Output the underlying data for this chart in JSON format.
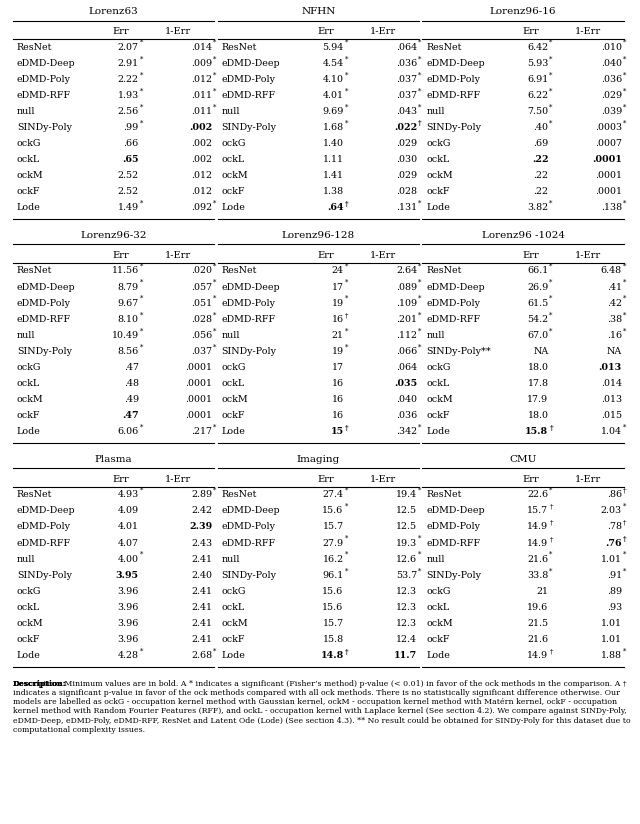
{
  "figure_width": 6.4,
  "figure_height": 8.24,
  "tables": [
    {
      "title": "Lorenz63",
      "rows": [
        [
          "ResNet",
          "2.07",
          "*",
          ".014",
          "*",
          false,
          false
        ],
        [
          "eDMD-Deep",
          "2.91",
          "*",
          ".009",
          "*",
          false,
          false
        ],
        [
          "eDMD-Poly",
          "2.22",
          "*",
          ".012",
          "*",
          false,
          false
        ],
        [
          "eDMD-RFF",
          "1.93",
          "*",
          ".011",
          "*",
          false,
          false
        ],
        [
          "null",
          "2.56",
          "*",
          ".011",
          "*",
          false,
          false
        ],
        [
          "SINDy-Poly",
          ".99",
          "*",
          ".002",
          "",
          false,
          true
        ],
        [
          "ockG",
          ".66",
          "",
          ".002",
          "",
          false,
          false
        ],
        [
          "ockL",
          ".65",
          "",
          ".002",
          "",
          true,
          false
        ],
        [
          "ockM",
          "2.52",
          "",
          ".012",
          "",
          false,
          false
        ],
        [
          "ockF",
          "2.52",
          "",
          ".012",
          "",
          false,
          false
        ],
        [
          "Lode",
          "1.49",
          "*",
          ".092",
          "*",
          false,
          false
        ]
      ]
    },
    {
      "title": "NFHN",
      "rows": [
        [
          "ResNet",
          "5.94",
          "*",
          ".064",
          "*",
          false,
          false
        ],
        [
          "eDMD-Deep",
          "4.54",
          "*",
          ".036",
          "*",
          false,
          false
        ],
        [
          "eDMD-Poly",
          "4.10",
          "*",
          ".037",
          "*",
          false,
          false
        ],
        [
          "eDMD-RFF",
          "4.01",
          "*",
          ".037",
          "*",
          false,
          false
        ],
        [
          "null",
          "9.69",
          "*",
          ".043",
          "*",
          false,
          false
        ],
        [
          "SINDy-Poly",
          "1.68",
          "*",
          ".022",
          "†",
          false,
          true
        ],
        [
          "ockG",
          "1.40",
          "",
          ".029",
          "",
          false,
          false
        ],
        [
          "ockL",
          "1.11",
          "",
          ".030",
          "",
          false,
          false
        ],
        [
          "ockM",
          "1.41",
          "",
          ".029",
          "",
          false,
          false
        ],
        [
          "ockF",
          "1.38",
          "",
          ".028",
          "",
          false,
          false
        ],
        [
          "Lode",
          ".64",
          "†",
          ".131",
          "*",
          true,
          false
        ]
      ]
    },
    {
      "title": "Lorenz96-16",
      "rows": [
        [
          "ResNet",
          "6.42",
          "*",
          ".010",
          "*",
          false,
          false
        ],
        [
          "eDMD-Deep",
          "5.93",
          "*",
          ".040",
          "*",
          false,
          false
        ],
        [
          "eDMD-Poly",
          "6.91",
          "*",
          ".036",
          "*",
          false,
          false
        ],
        [
          "eDMD-RFF",
          "6.22",
          "*",
          ".029",
          "*",
          false,
          false
        ],
        [
          "null",
          "7.50",
          "*",
          ".039",
          "*",
          false,
          false
        ],
        [
          "SINDy-Poly",
          ".40",
          "*",
          ".0003",
          "*",
          false,
          false
        ],
        [
          "ockG",
          ".69",
          "",
          ".0007",
          "",
          false,
          false
        ],
        [
          "ockL",
          ".22",
          "",
          ".0001",
          "",
          true,
          true
        ],
        [
          "ockM",
          ".22",
          "",
          ".0001",
          "",
          false,
          false
        ],
        [
          "ockF",
          ".22",
          "",
          ".0001",
          "",
          false,
          false
        ],
        [
          "Lode",
          "3.82",
          "*",
          ".138",
          "*",
          false,
          false
        ]
      ]
    },
    {
      "title": "Lorenz96-32",
      "rows": [
        [
          "ResNet",
          "11.56",
          "*",
          ".020",
          "*",
          false,
          false
        ],
        [
          "eDMD-Deep",
          "8.79",
          "*",
          ".057",
          "*",
          false,
          false
        ],
        [
          "eDMD-Poly",
          "9.67",
          "*",
          ".051",
          "*",
          false,
          false
        ],
        [
          "eDMD-RFF",
          "8.10",
          "*",
          ".028",
          "*",
          false,
          false
        ],
        [
          "null",
          "10.49",
          "*",
          ".056",
          "*",
          false,
          false
        ],
        [
          "SINDy-Poly",
          "8.56",
          "*",
          ".037",
          "*",
          false,
          false
        ],
        [
          "ockG",
          ".47",
          "",
          ".0001",
          "",
          false,
          false
        ],
        [
          "ockL",
          ".48",
          "",
          ".0001",
          "",
          false,
          false
        ],
        [
          "ockM",
          ".49",
          "",
          ".0001",
          "",
          false,
          false
        ],
        [
          "ockF",
          ".47",
          "",
          ".0001",
          "",
          true,
          false
        ],
        [
          "Lode",
          "6.06",
          "*",
          ".217",
          "*",
          false,
          false
        ]
      ]
    },
    {
      "title": "Lorenz96-128",
      "rows": [
        [
          "ResNet",
          "24",
          "*",
          "2.64",
          "*",
          false,
          false
        ],
        [
          "eDMD-Deep",
          "17",
          "*",
          ".089",
          "*",
          false,
          false
        ],
        [
          "eDMD-Poly",
          "19",
          "*",
          ".109",
          "*",
          false,
          false
        ],
        [
          "eDMD-RFF",
          "16",
          "†",
          ".201",
          "*",
          false,
          false
        ],
        [
          "null",
          "21",
          "*",
          ".112",
          "*",
          false,
          false
        ],
        [
          "SINDy-Poly",
          "19",
          "*",
          ".066",
          "*",
          false,
          false
        ],
        [
          "ockG",
          "17",
          "",
          ".064",
          "",
          false,
          false
        ],
        [
          "ockL",
          "16",
          "",
          ".035",
          "",
          false,
          true
        ],
        [
          "ockM",
          "16",
          "",
          ".040",
          "",
          false,
          false
        ],
        [
          "ockF",
          "16",
          "",
          ".036",
          "",
          false,
          false
        ],
        [
          "Lode",
          "15",
          "†",
          ".342",
          "*",
          true,
          false
        ]
      ]
    },
    {
      "title": "Lorenz96 -1024",
      "rows": [
        [
          "ResNet",
          "66.1",
          "*",
          "6.48",
          "*",
          false,
          false
        ],
        [
          "eDMD-Deep",
          "26.9",
          "*",
          ".41",
          "*",
          false,
          false
        ],
        [
          "eDMD-Poly",
          "61.5",
          "*",
          ".42",
          "*",
          false,
          false
        ],
        [
          "eDMD-RFF",
          "54.2",
          "*",
          ".38",
          "*",
          false,
          false
        ],
        [
          "null",
          "67.0",
          "*",
          ".16",
          "*",
          false,
          false
        ],
        [
          "SINDy-Poly**",
          "NA",
          "",
          "NA",
          "",
          false,
          false
        ],
        [
          "ockG",
          "18.0",
          "",
          ".013",
          "",
          false,
          true
        ],
        [
          "ockL",
          "17.8",
          "",
          ".014",
          "",
          false,
          false
        ],
        [
          "ockM",
          "17.9",
          "",
          ".013",
          "",
          false,
          false
        ],
        [
          "ockF",
          "18.0",
          "",
          ".015",
          "",
          false,
          false
        ],
        [
          "Lode",
          "15.8",
          "†",
          "1.04",
          "*",
          true,
          false
        ]
      ]
    },
    {
      "title": "Plasma",
      "rows": [
        [
          "ResNet",
          "4.93",
          "*",
          "2.89",
          "*",
          false,
          false
        ],
        [
          "eDMD-Deep",
          "4.09",
          "",
          "2.42",
          "",
          false,
          false
        ],
        [
          "eDMD-Poly",
          "4.01",
          "",
          "2.39",
          "",
          false,
          true
        ],
        [
          "eDMD-RFF",
          "4.07",
          "",
          "2.43",
          "",
          false,
          false
        ],
        [
          "null",
          "4.00",
          "*",
          "2.41",
          "",
          false,
          false
        ],
        [
          "SINDy-Poly",
          "3.95",
          "",
          "2.40",
          "",
          true,
          false
        ],
        [
          "ockG",
          "3.96",
          "",
          "2.41",
          "",
          false,
          false
        ],
        [
          "ockL",
          "3.96",
          "",
          "2.41",
          "",
          false,
          false
        ],
        [
          "ockM",
          "3.96",
          "",
          "2.41",
          "",
          false,
          false
        ],
        [
          "ockF",
          "3.96",
          "",
          "2.41",
          "",
          false,
          false
        ],
        [
          "Lode",
          "4.28",
          "*",
          "2.68",
          "*",
          false,
          false
        ]
      ]
    },
    {
      "title": "Imaging",
      "rows": [
        [
          "ResNet",
          "27.4",
          "*",
          "19.4",
          "*",
          false,
          false
        ],
        [
          "eDMD-Deep",
          "15.6",
          "*",
          "12.5",
          "",
          false,
          false
        ],
        [
          "eDMD-Poly",
          "15.7",
          "",
          "12.5",
          "",
          false,
          false
        ],
        [
          "eDMD-RFF",
          "27.9",
          "*",
          "19.3",
          "*",
          false,
          false
        ],
        [
          "null",
          "16.2",
          "*",
          "12.6",
          "*",
          false,
          false
        ],
        [
          "SINDy-Poly",
          "96.1",
          "*",
          "53.7",
          "*",
          false,
          false
        ],
        [
          "ockG",
          "15.6",
          "",
          "12.3",
          "",
          false,
          false
        ],
        [
          "ockL",
          "15.6",
          "",
          "12.3",
          "",
          false,
          false
        ],
        [
          "ockM",
          "15.7",
          "",
          "12.3",
          "",
          false,
          false
        ],
        [
          "ockF",
          "15.8",
          "",
          "12.4",
          "",
          false,
          false
        ],
        [
          "Lode",
          "14.8",
          "†",
          "11.7",
          "",
          true,
          true
        ]
      ]
    },
    {
      "title": "CMU",
      "rows": [
        [
          "ResNet",
          "22.6",
          "*",
          ".86",
          "†",
          false,
          false
        ],
        [
          "eDMD-Deep",
          "15.7",
          "†",
          "2.03",
          "*",
          false,
          false
        ],
        [
          "eDMD-Poly",
          "14.9",
          "†",
          ".78",
          "†",
          false,
          false
        ],
        [
          "eDMD-RFF",
          "14.9",
          "†",
          ".76",
          "†",
          false,
          true
        ],
        [
          "null",
          "21.6",
          "*",
          "1.01",
          "*",
          false,
          false
        ],
        [
          "SINDy-Poly",
          "33.8",
          "*",
          ".91",
          "*",
          false,
          false
        ],
        [
          "ockG",
          "21",
          "",
          ".89",
          "",
          false,
          false
        ],
        [
          "ockL",
          "19.6",
          "",
          ".93",
          "",
          false,
          false
        ],
        [
          "ockM",
          "21.5",
          "",
          "1.01",
          "",
          false,
          false
        ],
        [
          "ockF",
          "21.6",
          "",
          "1.01",
          "",
          false,
          false
        ],
        [
          "Lode",
          "14.9",
          "†",
          "1.88",
          "*",
          false,
          false
        ]
      ]
    }
  ],
  "caption_bold": "Description:",
  "caption_rest": " Minimum values are in bold. A * indicates a significant (Fisher’s method) p-value (< 0.01) in favor of the ock methods in the comparison. A † indicates a significant p-value in favor of the ock methods compared with all ock methods. There is no statistically significant difference otherwise. Our models are labelled as ockG - occupation kernel method with Gaussian kernel, ockM - occupation kernel method with Matérn kernel, ockF - occupation kernel method with Random Fourier Features (RFF), and ockL - occupation kernel with Laplace kernel (See section 4.2). We compare against SINDy-Poly, eDMD-Deep, eDMD-Poly, eDMD-RFF, ResNet and Latent Ode (Lode) (See section 4.3). ** No result could be obtained for SINDy-Poly for this dataset due to computational complexity issues."
}
